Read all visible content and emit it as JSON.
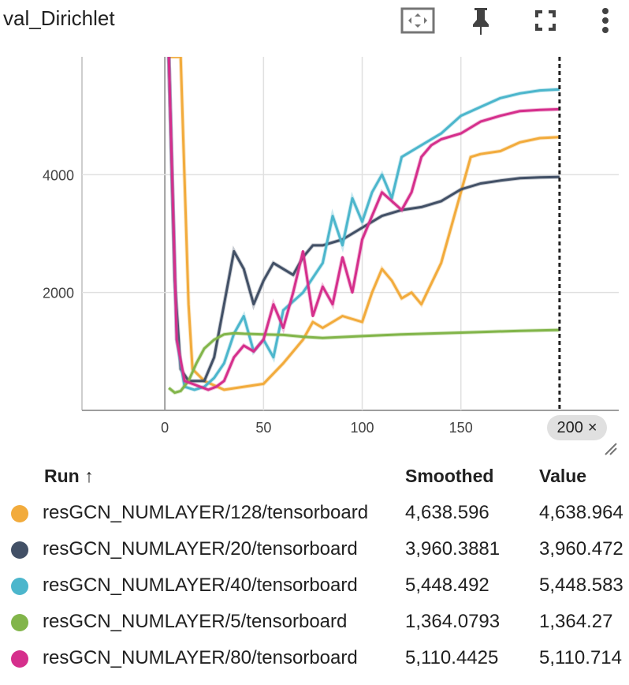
{
  "title": "val_Dirichlet",
  "toolbar": {
    "icons": [
      "fit-domain-icon",
      "pin-icon",
      "fullscreen-icon",
      "more-vert-icon"
    ]
  },
  "step_badge": {
    "label": "200",
    "close": "×"
  },
  "legend": {
    "headers": {
      "run": "Run ↑",
      "smoothed": "Smoothed",
      "value": "Value"
    },
    "rows": [
      {
        "name": "resGCN_NUMLAYER/128/tensorboard",
        "smoothed": "4,638.596",
        "value": "4,638.964",
        "color": "#f2ab3c"
      },
      {
        "name": "resGCN_NUMLAYER/20/tensorboard",
        "smoothed": "3,960.3881",
        "value": "3,960.472",
        "color": "#425066"
      },
      {
        "name": "resGCN_NUMLAYER/40/tensorboard",
        "smoothed": "5,448.492",
        "value": "5,448.583",
        "color": "#4cb6cc"
      },
      {
        "name": "resGCN_NUMLAYER/5/tensorboard",
        "smoothed": "1,364.0793",
        "value": "1,364.27",
        "color": "#82b54a"
      },
      {
        "name": "resGCN_NUMLAYER/80/tensorboard",
        "smoothed": "5,110.4425",
        "value": "5,110.714",
        "color": "#d52f8c"
      }
    ]
  },
  "chart_data": {
    "type": "line",
    "title": "val_Dirichlet",
    "xlim": [
      -42,
      230
    ],
    "ylim": [
      0,
      6000
    ],
    "x_ticks": [
      0,
      50,
      100,
      150
    ],
    "y_ticks": [
      2000,
      4000
    ],
    "y_tick_labels": [
      "2000",
      "4000"
    ],
    "cursor_x": 200,
    "grid": true,
    "series": [
      {
        "name": "resGCN_NUMLAYER/128/tensorboard",
        "color": "#f2ab3c",
        "x": [
          2,
          8,
          12,
          14,
          20,
          30,
          40,
          50,
          60,
          70,
          75,
          80,
          90,
          100,
          105,
          110,
          115,
          120,
          125,
          130,
          140,
          150,
          155,
          160,
          170,
          180,
          190,
          200
        ],
        "y": [
          6000,
          6000,
          1800,
          700,
          500,
          350,
          400,
          450,
          800,
          1200,
          1500,
          1400,
          1600,
          1500,
          2000,
          2400,
          2200,
          1900,
          2000,
          1800,
          2500,
          3700,
          4300,
          4350,
          4400,
          4550,
          4620,
          4638.596
        ]
      },
      {
        "name": "resGCN_NUMLAYER/20/tensorboard",
        "color": "#425066",
        "x": [
          2,
          5,
          8,
          12,
          20,
          25,
          30,
          35,
          40,
          45,
          50,
          55,
          60,
          65,
          70,
          75,
          80,
          90,
          100,
          110,
          120,
          130,
          140,
          150,
          160,
          170,
          180,
          190,
          200
        ],
        "y": [
          6000,
          2200,
          700,
          500,
          500,
          900,
          1800,
          2700,
          2400,
          1800,
          2200,
          2500,
          2400,
          2300,
          2600,
          2800,
          2800,
          2900,
          3100,
          3300,
          3400,
          3450,
          3550,
          3750,
          3850,
          3900,
          3940,
          3955,
          3960.3881
        ]
      },
      {
        "name": "resGCN_NUMLAYER/40/tensorboard",
        "color": "#4cb6cc",
        "x": [
          2,
          6,
          10,
          15,
          20,
          25,
          30,
          35,
          40,
          45,
          50,
          55,
          60,
          70,
          80,
          85,
          90,
          95,
          100,
          105,
          110,
          115,
          120,
          130,
          140,
          150,
          160,
          170,
          180,
          190,
          200
        ],
        "y": [
          6000,
          1200,
          400,
          350,
          400,
          550,
          800,
          1300,
          1600,
          1000,
          1200,
          900,
          1700,
          2000,
          2500,
          3300,
          2800,
          3600,
          3200,
          3700,
          4000,
          3600,
          4300,
          4500,
          4700,
          5000,
          5150,
          5300,
          5380,
          5430,
          5448.492
        ]
      },
      {
        "name": "resGCN_NUMLAYER/5/tensorboard",
        "color": "#82b54a",
        "x": [
          2,
          5,
          8,
          12,
          16,
          20,
          25,
          30,
          35,
          40,
          50,
          60,
          70,
          80,
          100,
          120,
          140,
          160,
          180,
          200
        ],
        "y": [
          380,
          300,
          330,
          500,
          800,
          1050,
          1200,
          1290,
          1310,
          1300,
          1290,
          1280,
          1250,
          1230,
          1260,
          1290,
          1310,
          1330,
          1350,
          1364.0793
        ]
      },
      {
        "name": "resGCN_NUMLAYER/80/tensorboard",
        "color": "#d52f8c",
        "x": [
          2,
          6,
          10,
          14,
          18,
          22,
          26,
          30,
          35,
          40,
          45,
          50,
          55,
          60,
          65,
          70,
          75,
          80,
          85,
          90,
          95,
          100,
          105,
          110,
          120,
          125,
          130,
          135,
          140,
          150,
          160,
          170,
          180,
          190,
          200
        ],
        "y": [
          6000,
          1200,
          500,
          450,
          400,
          350,
          400,
          500,
          900,
          1100,
          1000,
          1200,
          1800,
          1400,
          2000,
          2700,
          1600,
          2100,
          1800,
          2600,
          2000,
          2900,
          3300,
          3700,
          3400,
          3700,
          4300,
          4500,
          4600,
          4700,
          4900,
          5000,
          5080,
          5100,
          5110.4425
        ]
      }
    ]
  }
}
